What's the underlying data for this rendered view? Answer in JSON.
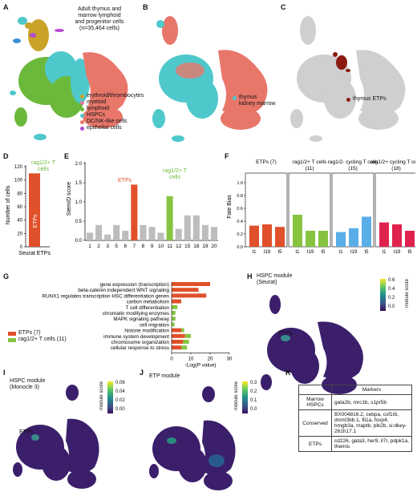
{
  "panels": {
    "A": {
      "label": "A",
      "title_lines": [
        "Adult thymus and",
        "marrow lymphoid",
        "and progenitor cells",
        "(n=35,464 cells)"
      ],
      "legend": [
        {
          "name": "erythroid/thrombocytes",
          "color": "#c9a227"
        },
        {
          "name": "myeloid",
          "color": "#e07b9a"
        },
        {
          "name": "lymphoid",
          "color": "#6cb83a"
        },
        {
          "name": "HSPCs",
          "color": "#4fc8cc"
        },
        {
          "name": "DC/NK-like cells",
          "color": "#e8776a"
        },
        {
          "name": "epithelial cells",
          "color": "#b44ad1"
        }
      ]
    },
    "B": {
      "label": "B",
      "legend": [
        {
          "name": "thymus",
          "color": "#4fc8cc"
        },
        {
          "name": "kidney marrow",
          "color": "#e8776a"
        }
      ]
    },
    "C": {
      "label": "C",
      "legend": [
        {
          "name": "thymus ETPs",
          "color": "#8b1a10"
        }
      ]
    },
    "D": {
      "label": "D",
      "ylabel": "Number of cells",
      "xlabel": "Seurat ETPs",
      "bar_label": "ETPs",
      "annotation": "rag1/2+ T cells",
      "yticks": [
        "0",
        "20",
        "40",
        "60",
        "80",
        "100",
        "120"
      ]
    },
    "E": {
      "label": "E",
      "ylabel": "StemID score",
      "annotation_etps": "ETPs",
      "annotation_rag": "rag1/2+ T cells",
      "yticks": [
        "0.0",
        "0.5",
        "1.0",
        "1.5",
        "2.0"
      ]
    },
    "F": {
      "label": "F",
      "ylabel": "Fate Bias",
      "yticks": [
        "0.0",
        "0.2",
        "0.4",
        "0.6",
        "0.8",
        "1.0"
      ],
      "subpanels": [
        {
          "title": "ETPs (7)",
          "color": "#e0502a"
        },
        {
          "title": "rag1/2+ T cells (11)",
          "color": "#86c440"
        },
        {
          "title": "rag1/2- cycling T cells (15)",
          "color": "#5aaee8"
        },
        {
          "title": "rag1/2+ cycling T cells (18)",
          "color": "#e0234e"
        }
      ],
      "xticks": [
        "t1",
        "t19",
        "t5"
      ]
    },
    "G": {
      "label": "G",
      "xlabel": "-Log(P value)",
      "xticks": [
        "0",
        "10",
        "20",
        "30"
      ],
      "legend": [
        {
          "name": "ETPs (7)",
          "color": "#e0502a"
        },
        {
          "name": "rag1/2+ T cells (11)",
          "color": "#86c440"
        }
      ]
    },
    "H": {
      "label": "H",
      "title": "HSPC module (Seurat)",
      "annotation": "ETPs",
      "cb_title": "module score",
      "cb_ticks": [
        "0.6",
        "0.4",
        "0.2",
        "0.0"
      ]
    },
    "I": {
      "label": "I",
      "title": "HSPC module (Monocle 3)",
      "annotation": "ETPs",
      "cb_title": "module score",
      "cb_ticks": [
        "0.06",
        "0.04",
        "0.02",
        "0.00"
      ]
    },
    "J": {
      "label": "J",
      "title": "ETP module",
      "cb_title": "module score",
      "cb_ticks": [
        "0.3",
        "0.2",
        "0.1",
        "0.0"
      ]
    },
    "K": {
      "label": "K",
      "header": "Markers",
      "rows": [
        {
          "name": "Marrow HSPCs",
          "markers": "gata2b, mrc1b, s1pr5b"
        },
        {
          "name": "Conserved",
          "markers": "BX004816.2, cebpa, csf1rb, dnmt3bb.1, fli1a, foxp4, hmgb3a, maptb, plk2b, si:dkey-261h17.1"
        },
        {
          "name": "ETPs",
          "markers": "cd226, gata3, her9, il7r, pdpk1a, themis"
        }
      ]
    }
  },
  "chart_data": [
    {
      "type": "bar",
      "panel": "D",
      "categories": [
        "Seurat ETPs"
      ],
      "values": [
        110
      ],
      "ylabel": "Number of cells",
      "ylim": [
        0,
        120
      ]
    },
    {
      "type": "bar",
      "panel": "E",
      "categories": [
        "1",
        "2",
        "3",
        "5",
        "6",
        "7",
        "8",
        "9",
        "10",
        "11",
        "12",
        "15",
        "18",
        "19",
        "20"
      ],
      "values": [
        0.2,
        0.4,
        0.15,
        0.4,
        0.25,
        1.45,
        0.4,
        0.35,
        0.2,
        1.15,
        0.3,
        0.65,
        0.65,
        0.4,
        0.35
      ],
      "highlight": {
        "7": "#e0502a",
        "11": "#86c440"
      },
      "ylabel": "StemID score",
      "ylim": [
        0,
        2
      ]
    },
    {
      "type": "bar",
      "panel": "F",
      "categories": [
        "t1",
        "t19",
        "t5"
      ],
      "ylabel": "Fate Bias",
      "ylim": [
        0,
        1
      ],
      "series": [
        {
          "name": "ETPs (7)",
          "values": [
            0.33,
            0.35,
            0.31
          ]
        },
        {
          "name": "rag1/2+ T cells (11)",
          "values": [
            0.5,
            0.25,
            0.25
          ]
        },
        {
          "name": "rag1/2- cycling T cells (15)",
          "values": [
            0.23,
            0.29,
            0.47
          ]
        },
        {
          "name": "rag1/2+ cycling T cells (18)",
          "values": [
            0.38,
            0.35,
            0.25
          ]
        }
      ]
    },
    {
      "type": "bar",
      "panel": "G",
      "orientation": "horizontal",
      "xlabel": "-Log(P value)",
      "xlim": [
        0,
        30
      ],
      "categories": [
        "gene expression (transcription)",
        "beta-catenin independent WNT signaling",
        "RUNX1 regulates transcription HSC differentiation genes",
        "carbon metabolism",
        "T cell differentiation",
        "chromatin modifying enzymes",
        "MAPK signaling pathway",
        "cell migration",
        "histone modification",
        "immune system development",
        "chromosome organization",
        "cellular response to stress"
      ],
      "series": [
        {
          "name": "ETPs (7)",
          "values": [
            20,
            14,
            18,
            5,
            0,
            0,
            0,
            0,
            5,
            7,
            6,
            5
          ]
        },
        {
          "name": "rag1/2+ T cells (11)",
          "values": [
            0,
            0,
            0,
            0,
            3,
            2,
            2,
            1.5,
            1.5,
            3,
            3,
            3
          ]
        }
      ]
    }
  ]
}
